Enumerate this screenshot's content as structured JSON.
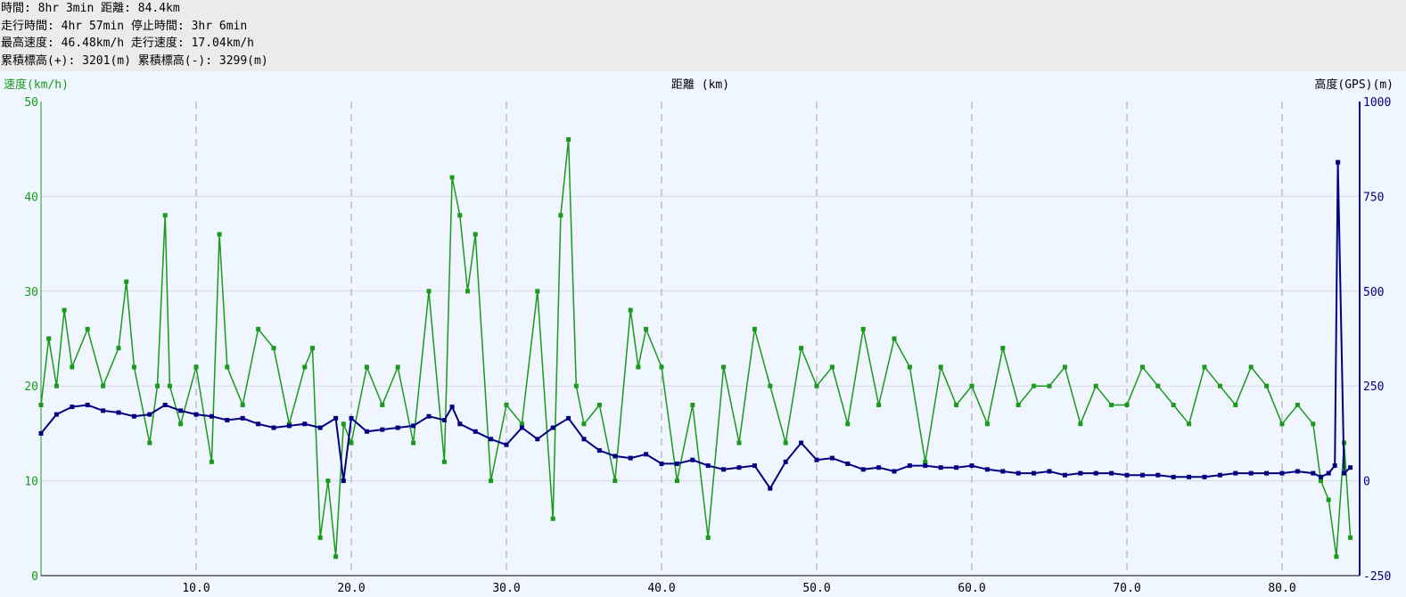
{
  "stats": {
    "line1": "時間: 8hr 3min 距離: 84.4km",
    "line2": "走行時間: 4hr 57min 停止時間: 3hr 6min",
    "line3": "最高速度: 46.48km/h 走行速度: 17.04km/h",
    "line4": "累積標高(+): 3201(m) 累積標高(-): 3299(m)"
  },
  "chart_data": {
    "type": "line",
    "title": "距離 (km)",
    "xlabel": "距離 (km)",
    "ylabel": "速度(km/h)",
    "y2label": "高度(GPS)(m)",
    "xlim": [
      0,
      85
    ],
    "ylim": [
      0,
      50
    ],
    "y2lim": [
      -250,
      1000
    ],
    "x_ticks": [
      10,
      20,
      30,
      40,
      50,
      60,
      70,
      80
    ],
    "x_tick_labels": [
      "10.0",
      "20.0",
      "30.0",
      "40.0",
      "50.0",
      "60.0",
      "70.0",
      "80.0"
    ],
    "y_ticks": [
      0,
      10,
      20,
      30,
      40,
      50
    ],
    "y_tick_labels": [
      "0",
      "10",
      "20",
      "30",
      "40",
      "50"
    ],
    "y2_ticks": [
      -250,
      0,
      250,
      500,
      750,
      1000
    ],
    "y2_tick_labels": [
      "-250",
      "0",
      "250",
      "500",
      "750",
      "1000"
    ],
    "series": [
      {
        "axis": "left",
        "color": "#1a9a1a",
        "x": [
          0,
          0.5,
          1,
          1.5,
          2,
          3,
          4,
          5,
          5.5,
          6,
          7,
          7.5,
          8,
          8.3,
          9,
          10,
          11,
          11.5,
          12,
          13,
          14,
          15,
          16,
          17,
          17.5,
          18,
          18.5,
          19,
          19.5,
          20,
          21,
          22,
          23,
          24,
          25,
          26,
          26.5,
          27,
          27.5,
          28,
          29,
          30,
          31,
          32,
          33,
          33.5,
          34,
          34.5,
          35,
          36,
          37,
          38,
          38.5,
          39,
          40,
          41,
          42,
          43,
          44,
          45,
          46,
          47,
          48,
          49,
          50,
          51,
          52,
          53,
          54,
          55,
          56,
          57,
          58,
          59,
          60,
          61,
          62,
          63,
          64,
          65,
          66,
          67,
          68,
          69,
          70,
          71,
          72,
          73,
          74,
          75,
          76,
          77,
          78,
          79,
          80,
          81,
          82,
          82.5,
          83,
          83.5,
          84,
          84.4
        ],
        "y": [
          18,
          25,
          20,
          28,
          22,
          26,
          20,
          24,
          31,
          22,
          14,
          20,
          38,
          20,
          16,
          22,
          12,
          36,
          22,
          18,
          26,
          24,
          16,
          22,
          24,
          4,
          10,
          2,
          16,
          14,
          22,
          18,
          22,
          14,
          30,
          12,
          42,
          38,
          30,
          36,
          10,
          18,
          16,
          30,
          6,
          38,
          46,
          20,
          16,
          18,
          10,
          28,
          22,
          26,
          22,
          10,
          18,
          4,
          22,
          14,
          26,
          20,
          14,
          24,
          20,
          22,
          16,
          26,
          18,
          25,
          22,
          12,
          22,
          18,
          20,
          16,
          24,
          18,
          20,
          20,
          22,
          16,
          20,
          18,
          18,
          22,
          20,
          18,
          16,
          22,
          20,
          18,
          22,
          20,
          16,
          18,
          16,
          10,
          8,
          2,
          14,
          4
        ],
        "max": 46.48
      },
      {
        "axis": "right",
        "color": "#000080",
        "x": [
          0,
          1,
          2,
          3,
          4,
          5,
          6,
          7,
          8,
          9,
          10,
          11,
          12,
          13,
          14,
          15,
          16,
          17,
          18,
          19,
          19.5,
          20,
          21,
          22,
          23,
          24,
          25,
          26,
          26.5,
          27,
          28,
          29,
          30,
          31,
          32,
          33,
          34,
          35,
          36,
          37,
          38,
          39,
          40,
          41,
          42,
          43,
          44,
          45,
          46,
          47,
          48,
          49,
          50,
          51,
          52,
          53,
          54,
          55,
          56,
          57,
          58,
          59,
          60,
          61,
          62,
          63,
          64,
          65,
          66,
          67,
          68,
          69,
          70,
          71,
          72,
          73,
          74,
          75,
          76,
          77,
          78,
          79,
          80,
          81,
          82,
          82.5,
          83,
          83.4,
          83.6,
          84,
          84.4
        ],
        "y": [
          125,
          175,
          195,
          200,
          185,
          180,
          170,
          175,
          200,
          185,
          175,
          170,
          160,
          165,
          150,
          140,
          145,
          150,
          140,
          165,
          0,
          165,
          130,
          135,
          140,
          145,
          170,
          160,
          195,
          150,
          130,
          110,
          95,
          140,
          110,
          140,
          165,
          110,
          80,
          65,
          60,
          70,
          45,
          45,
          55,
          40,
          30,
          35,
          40,
          -20,
          50,
          100,
          55,
          60,
          45,
          30,
          35,
          25,
          40,
          40,
          35,
          35,
          40,
          30,
          25,
          20,
          20,
          25,
          15,
          20,
          20,
          20,
          15,
          15,
          15,
          10,
          10,
          10,
          15,
          20,
          20,
          20,
          20,
          25,
          20,
          10,
          20,
          40,
          840,
          20,
          35
        ]
      }
    ]
  }
}
